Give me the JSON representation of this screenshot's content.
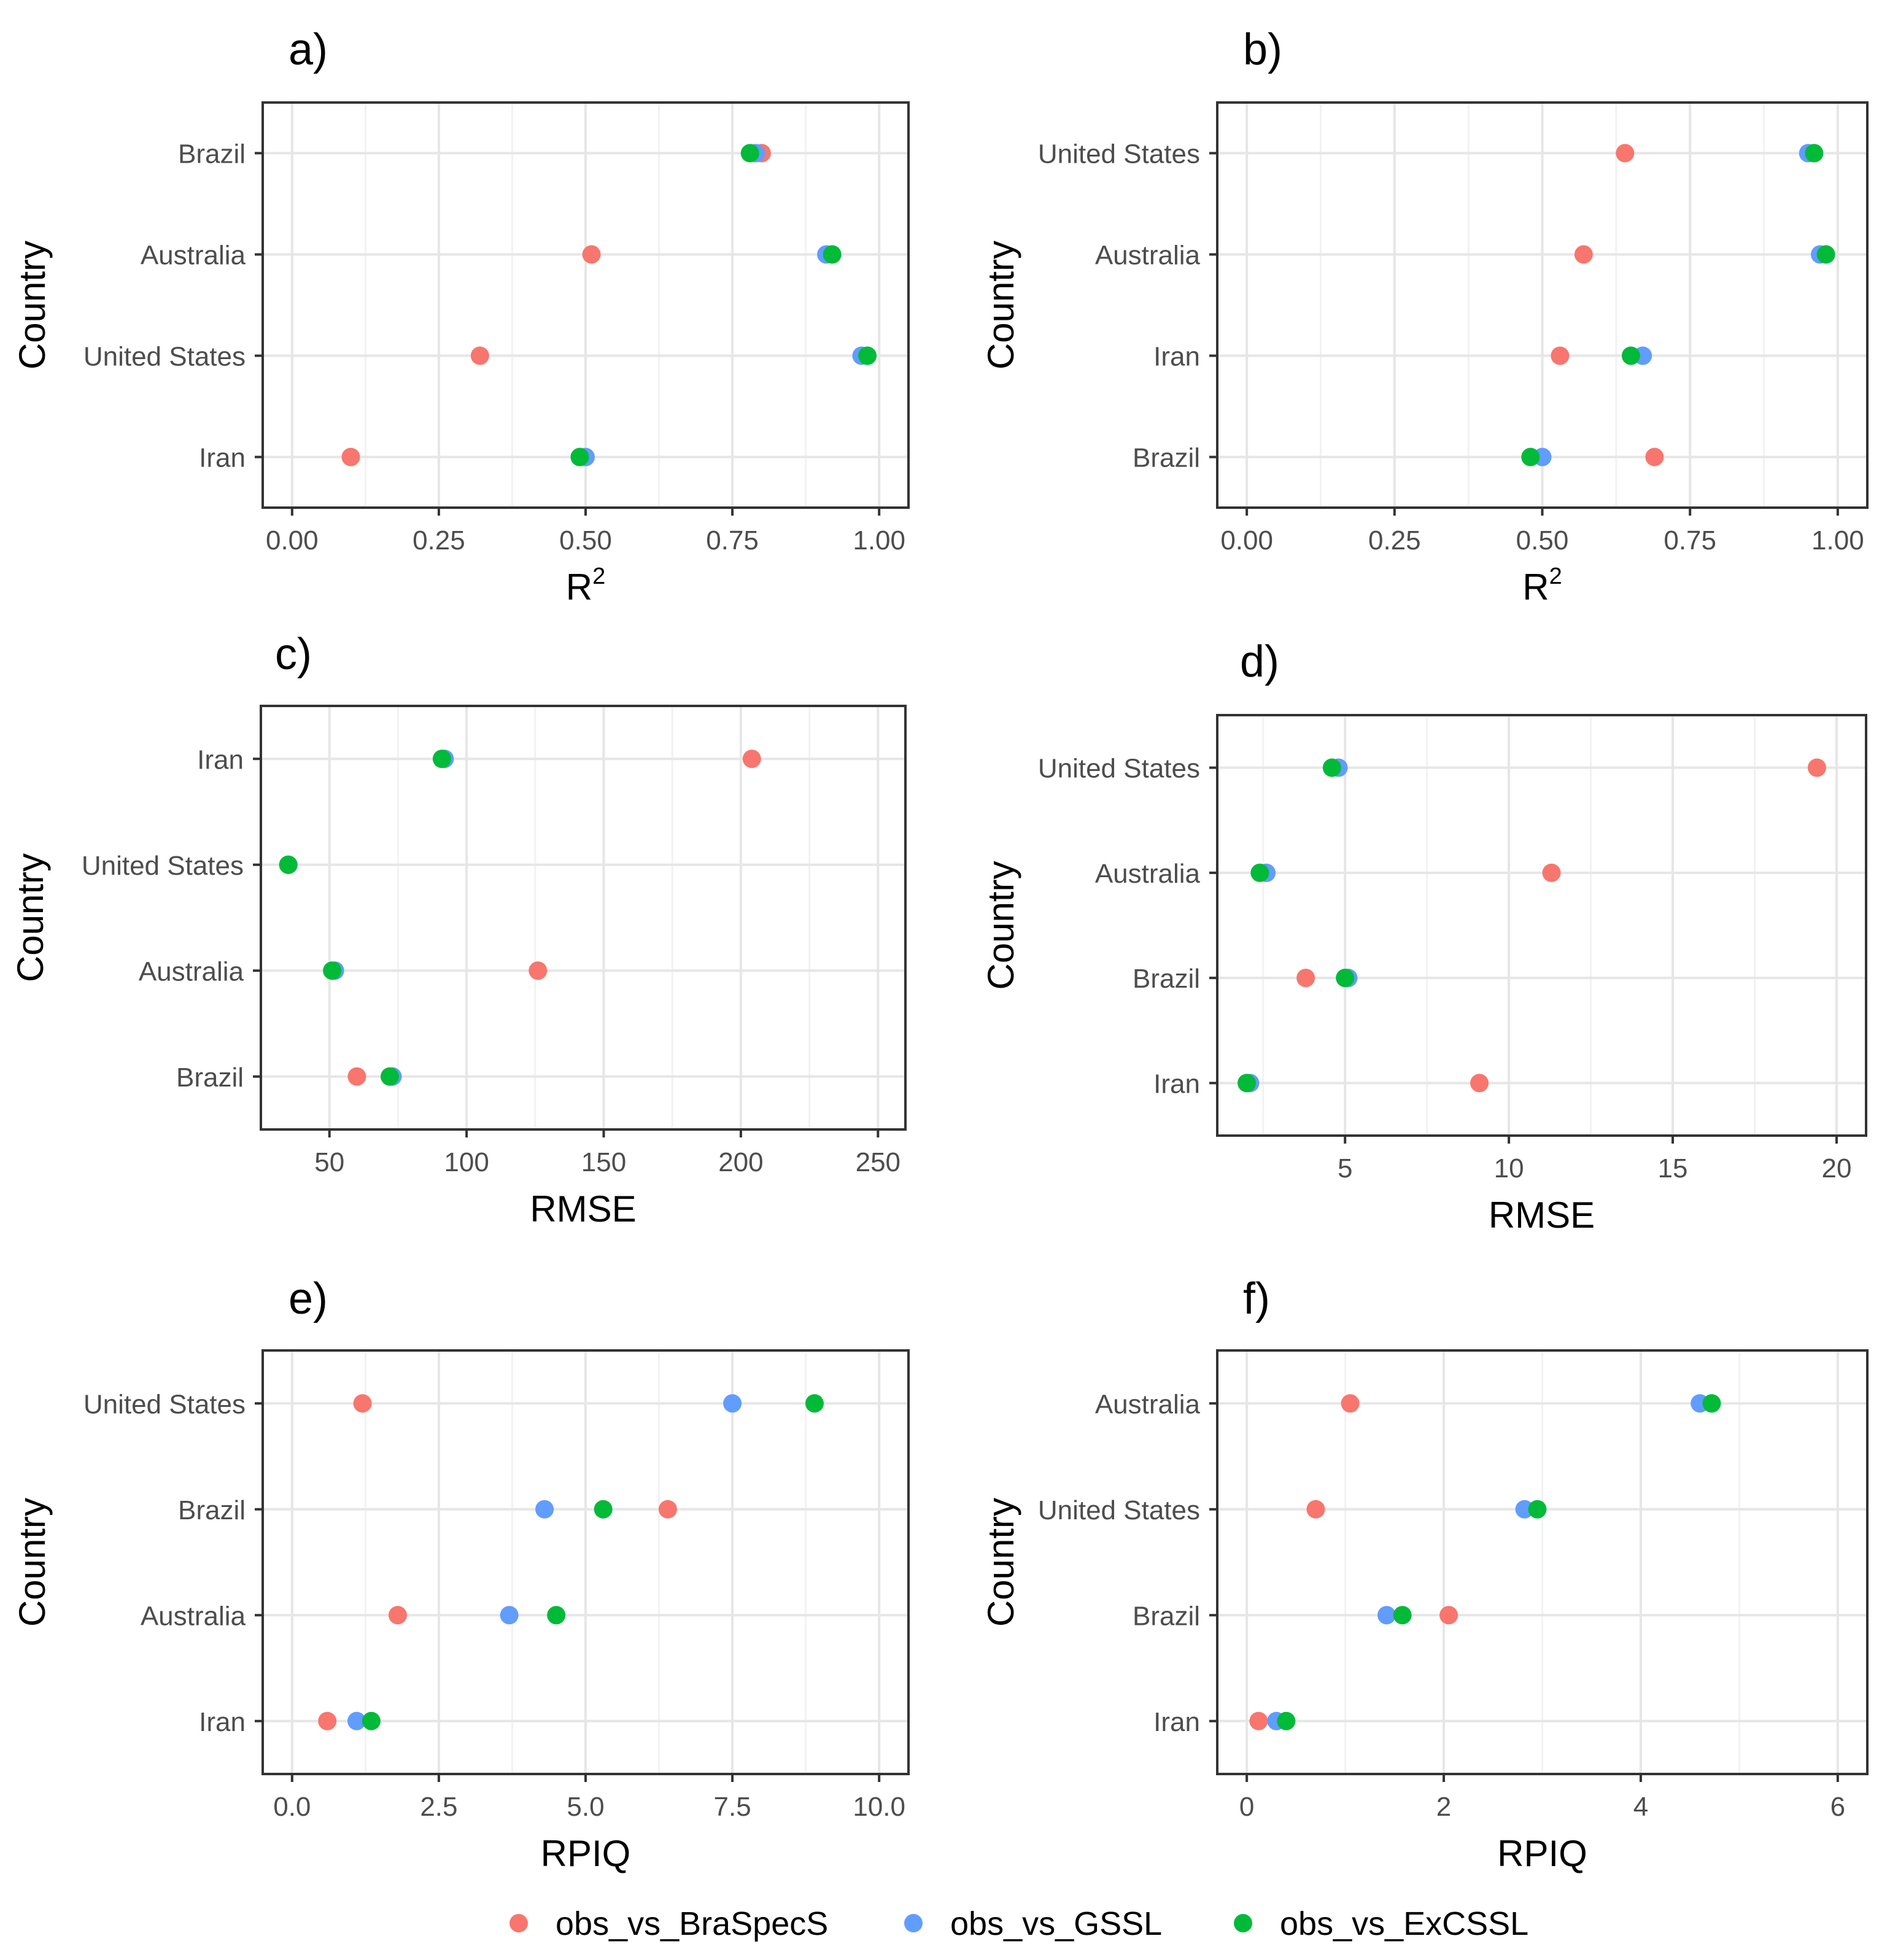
{
  "legend": [
    {
      "key": "obs_vs_BraSpecS",
      "label": "obs_vs_BraSpecS",
      "color": "#F8766D"
    },
    {
      "key": "obs_vs_GSSL",
      "label": "obs_vs_GSSL",
      "color": "#619CFF"
    },
    {
      "key": "obs_vs_ExCSSL",
      "label": "obs_vs_ExCSSL",
      "color": "#00BA38"
    }
  ],
  "chart_data": [
    {
      "panel": "a)",
      "type": "scatter",
      "xlabel": "R",
      "xlabel_superscript": "2",
      "ylabel": "Country",
      "xlim": [
        -0.05,
        1.05
      ],
      "xticks": [
        0,
        0.25,
        0.5,
        0.75,
        1.0
      ],
      "xtick_labels": [
        "0.00",
        "0.25",
        "0.50",
        "0.75",
        "1.00"
      ],
      "categories": [
        "Brazil",
        "Australia",
        "United States",
        "Iran"
      ],
      "series": [
        {
          "name": "obs_vs_BraSpecS",
          "values": [
            0.8,
            0.51,
            0.32,
            0.1
          ]
        },
        {
          "name": "obs_vs_GSSL",
          "values": [
            0.79,
            0.91,
            0.97,
            0.5
          ]
        },
        {
          "name": "obs_vs_ExCSSL",
          "values": [
            0.78,
            0.92,
            0.98,
            0.49
          ]
        }
      ]
    },
    {
      "panel": "b)",
      "type": "scatter",
      "xlabel": "R",
      "xlabel_superscript": "2",
      "ylabel": "Country",
      "xlim": [
        -0.05,
        1.05
      ],
      "xticks": [
        0,
        0.25,
        0.5,
        0.75,
        1.0
      ],
      "xtick_labels": [
        "0.00",
        "0.25",
        "0.50",
        "0.75",
        "1.00"
      ],
      "categories": [
        "United States",
        "Australia",
        "Iran",
        "Brazil"
      ],
      "series": [
        {
          "name": "obs_vs_BraSpecS",
          "values": [
            0.64,
            0.57,
            0.53,
            0.69
          ]
        },
        {
          "name": "obs_vs_GSSL",
          "values": [
            0.95,
            0.97,
            0.67,
            0.5
          ]
        },
        {
          "name": "obs_vs_ExCSSL",
          "values": [
            0.96,
            0.98,
            0.65,
            0.48
          ]
        }
      ]
    },
    {
      "panel": "c)",
      "type": "scatter",
      "xlabel": "RMSE",
      "ylabel": "Country",
      "xlim": [
        25,
        260
      ],
      "xticks": [
        50,
        100,
        150,
        200,
        250
      ],
      "xtick_labels": [
        "50",
        "100",
        "150",
        "200",
        "250"
      ],
      "categories": [
        "Iran",
        "United States",
        "Australia",
        "Brazil"
      ],
      "series": [
        {
          "name": "obs_vs_BraSpecS",
          "values": [
            204,
            35,
            126,
            60
          ]
        },
        {
          "name": "obs_vs_GSSL",
          "values": [
            92,
            35,
            52,
            73
          ]
        },
        {
          "name": "obs_vs_ExCSSL",
          "values": [
            91,
            35,
            51,
            72
          ]
        }
      ]
    },
    {
      "panel": "d)",
      "type": "scatter",
      "xlabel": "RMSE",
      "ylabel": "Country",
      "xlim": [
        1.1,
        20.9
      ],
      "xticks": [
        5,
        10,
        15,
        20
      ],
      "xtick_labels": [
        "5",
        "10",
        "15",
        "20"
      ],
      "categories": [
        "United States",
        "Australia",
        "Brazil",
        "Iran"
      ],
      "series": [
        {
          "name": "obs_vs_BraSpecS",
          "values": [
            19.4,
            11.3,
            3.8,
            9.1
          ]
        },
        {
          "name": "obs_vs_GSSL",
          "values": [
            4.8,
            2.6,
            5.1,
            2.1
          ]
        },
        {
          "name": "obs_vs_ExCSSL",
          "values": [
            4.6,
            2.4,
            5.0,
            2.0
          ]
        }
      ]
    },
    {
      "panel": "e)",
      "type": "scatter",
      "xlabel": "RPIQ",
      "ylabel": "Country",
      "xlim": [
        -0.5,
        10.5
      ],
      "xticks": [
        0,
        2.5,
        5,
        7.5,
        10
      ],
      "xtick_labels": [
        "0.0",
        "2.5",
        "5.0",
        "7.5",
        "10.0"
      ],
      "categories": [
        "United States",
        "Brazil",
        "Australia",
        "Iran"
      ],
      "series": [
        {
          "name": "obs_vs_BraSpecS",
          "values": [
            1.2,
            6.4,
            1.8,
            0.6
          ]
        },
        {
          "name": "obs_vs_GSSL",
          "values": [
            7.5,
            4.3,
            3.7,
            1.1
          ]
        },
        {
          "name": "obs_vs_ExCSSL",
          "values": [
            8.9,
            5.3,
            4.5,
            1.35
          ]
        }
      ]
    },
    {
      "panel": "f)",
      "type": "scatter",
      "xlabel": "RPIQ",
      "ylabel": "Country",
      "xlim": [
        -0.3,
        6.3
      ],
      "xticks": [
        0,
        2,
        4,
        6
      ],
      "xtick_labels": [
        "0",
        "2",
        "4",
        "6"
      ],
      "categories": [
        "Australia",
        "United States",
        "Brazil",
        "Iran"
      ],
      "series": [
        {
          "name": "obs_vs_BraSpecS",
          "values": [
            1.05,
            0.7,
            2.05,
            0.12
          ]
        },
        {
          "name": "obs_vs_GSSL",
          "values": [
            4.6,
            2.82,
            1.42,
            0.3
          ]
        },
        {
          "name": "obs_vs_ExCSSL",
          "values": [
            4.72,
            2.95,
            1.58,
            0.4
          ]
        }
      ]
    }
  ]
}
